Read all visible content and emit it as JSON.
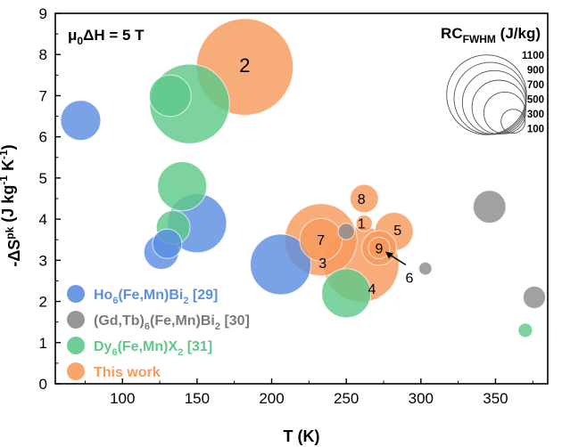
{
  "chart_data": {
    "type": "scatter",
    "variant": "bubble",
    "xlabel": "T (K)",
    "ylabel": "-ΔS_M^pk (J kg^-1 K^-1)",
    "xlim": [
      55,
      385
    ],
    "ylim": [
      0,
      9
    ],
    "xticks": [
      100,
      150,
      200,
      250,
      300,
      350
    ],
    "yticks": [
      0,
      1,
      2,
      3,
      4,
      5,
      6,
      7,
      8,
      9
    ],
    "grid": false,
    "field_annotation": "μ0ΔH = 5 T",
    "size_legend": {
      "title": "RC_FWHM (J/kg)",
      "values": [
        1100,
        900,
        700,
        500,
        300,
        100
      ]
    },
    "legend_position": "bottom-left",
    "series": [
      {
        "name": "Ho6(Fe,Mn)Bi2 [29]",
        "color": "#5b8fe0",
        "points": [
          {
            "x": 72,
            "y": 6.4,
            "rc": 240
          },
          {
            "x": 126,
            "y": 3.2,
            "rc": 180
          },
          {
            "x": 130,
            "y": 3.4,
            "rc": 130
          },
          {
            "x": 150,
            "y": 3.9,
            "rc": 520
          },
          {
            "x": 206,
            "y": 2.9,
            "rc": 550
          }
        ]
      },
      {
        "name": "(Gd,Tb)6(Fe,Mn)Bi2 [30]",
        "color": "#8c8c8c",
        "points": [
          {
            "x": 250,
            "y": 3.7,
            "rc": 40
          },
          {
            "x": 303,
            "y": 2.8,
            "rc": 25
          },
          {
            "x": 346,
            "y": 4.3,
            "rc": 160
          },
          {
            "x": 376,
            "y": 2.1,
            "rc": 75
          }
        ]
      },
      {
        "name": "Dy6(Fe,Mn)X2 [31]",
        "color": "#5fc98a",
        "points": [
          {
            "x": 145,
            "y": 6.8,
            "rc": 950
          },
          {
            "x": 132,
            "y": 7.0,
            "rc": 260
          },
          {
            "x": 140,
            "y": 4.8,
            "rc": 360
          },
          {
            "x": 134,
            "y": 3.8,
            "rc": 170
          },
          {
            "x": 250,
            "y": 2.2,
            "rc": 360
          },
          {
            "x": 370,
            "y": 1.3,
            "rc": 30
          }
        ]
      },
      {
        "name": "This work",
        "color": "#f79a5c",
        "points": [
          {
            "x": 182,
            "y": 7.7,
            "rc": 1400,
            "label": "2"
          },
          {
            "x": 262,
            "y": 4.5,
            "rc": 120,
            "label": "8"
          },
          {
            "x": 262,
            "y": 3.9,
            "rc": 40,
            "label": "1"
          },
          {
            "x": 282,
            "y": 3.7,
            "rc": 220,
            "label": "5"
          },
          {
            "x": 233,
            "y": 3.5,
            "rc": 270,
            "label": "7"
          },
          {
            "x": 233,
            "y": 3.5,
            "rc": 780,
            "label": "3"
          },
          {
            "x": 272,
            "y": 3.3,
            "rc": 180,
            "label": "9"
          },
          {
            "x": 272,
            "y": 3.3,
            "rc": 70,
            "label": "6"
          },
          {
            "x": 260,
            "y": 2.9,
            "rc": 850,
            "label": "4"
          }
        ]
      }
    ]
  }
}
